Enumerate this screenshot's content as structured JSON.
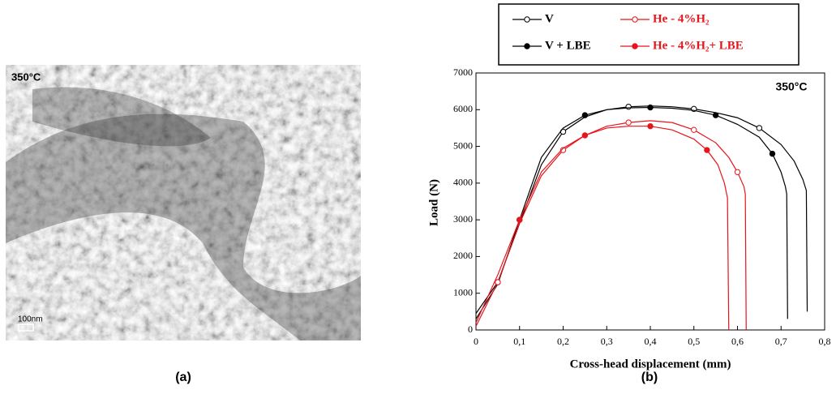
{
  "image_panel": {
    "label": "350°C",
    "scale_bar": "100nm",
    "caption": "(a)"
  },
  "chart_data": {
    "type": "line",
    "caption": "(b)",
    "annotation": "350°C",
    "xlabel": "Cross-head displacement (mm)",
    "ylabel": "Load (N)",
    "xlim": [
      0,
      0.8
    ],
    "xticks": [
      0,
      {
        "value": 0.1,
        "label": "0,1"
      },
      {
        "value": 0.2,
        "label": "0,2"
      },
      {
        "value": 0.3,
        "label": "0,3"
      },
      {
        "value": 0.4,
        "label": "0,4"
      },
      {
        "value": 0.5,
        "label": "0,5"
      },
      {
        "value": 0.6,
        "label": "0,6"
      },
      {
        "value": 0.7,
        "label": "0,7"
      },
      {
        "value": 0.8,
        "label": "0,8"
      }
    ],
    "ylim": [
      0,
      7000
    ],
    "yticks": [
      0,
      1000,
      2000,
      3000,
      4000,
      5000,
      6000,
      7000
    ],
    "series": [
      {
        "name": "V",
        "color": "#000000",
        "marker": "open",
        "x": [
          0,
          0.05,
          0.1,
          0.15,
          0.2,
          0.25,
          0.3,
          0.35,
          0.4,
          0.45,
          0.5,
          0.55,
          0.6,
          0.65,
          0.7,
          0.73,
          0.75,
          0.758,
          0.76
        ],
        "values": [
          450,
          1300,
          2900,
          4500,
          5400,
          5800,
          6000,
          6080,
          6100,
          6080,
          6020,
          5920,
          5780,
          5500,
          5050,
          4600,
          4100,
          3800,
          500
        ]
      },
      {
        "name": "V + LBE",
        "color": "#000000",
        "marker": "filled",
        "x": [
          0,
          0.05,
          0.1,
          0.15,
          0.2,
          0.25,
          0.3,
          0.35,
          0.4,
          0.45,
          0.5,
          0.55,
          0.6,
          0.65,
          0.68,
          0.7,
          0.71,
          0.713,
          0.715
        ],
        "values": [
          300,
          1250,
          3000,
          4700,
          5500,
          5850,
          6000,
          6050,
          6060,
          6040,
          5980,
          5850,
          5600,
          5250,
          4800,
          4300,
          3900,
          3700,
          300
        ]
      },
      {
        "name": "He - 4%H₂",
        "color": "#e8141b",
        "marker": "open",
        "x": [
          0,
          0.05,
          0.1,
          0.15,
          0.2,
          0.25,
          0.3,
          0.35,
          0.4,
          0.45,
          0.5,
          0.55,
          0.58,
          0.6,
          0.615,
          0.618,
          0.62
        ],
        "values": [
          100,
          1300,
          2900,
          4200,
          4900,
          5300,
          5550,
          5650,
          5700,
          5650,
          5450,
          5100,
          4700,
          4300,
          3900,
          3700,
          0
        ]
      },
      {
        "name": "He - 4%H₂+ LBE",
        "color": "#e8141b",
        "marker": "filled",
        "x": [
          0,
          0.05,
          0.1,
          0.15,
          0.2,
          0.25,
          0.3,
          0.35,
          0.4,
          0.45,
          0.5,
          0.53,
          0.555,
          0.57,
          0.577,
          0.58
        ],
        "values": [
          200,
          1500,
          3000,
          4300,
          4950,
          5300,
          5500,
          5550,
          5550,
          5450,
          5200,
          4900,
          4500,
          4000,
          3600,
          0
        ]
      }
    ]
  }
}
